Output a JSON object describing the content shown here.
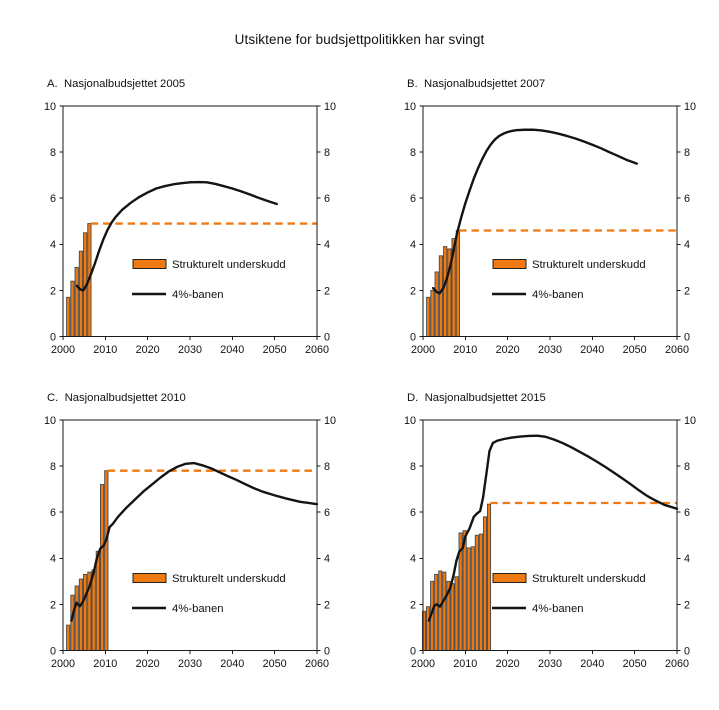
{
  "title": "Utsiktene for budsjettpolitikken har svingt",
  "colors": {
    "accent_orange": "#EF7A12",
    "series_line_black": "#141414",
    "axis_black": "#1a1a1a",
    "bar_border_gray": "#4a4a4a",
    "text": "#111111",
    "background": "#ffffff"
  },
  "chart_data": {
    "type": "bar",
    "note_chart_kind": "four-panel bar chart with line overlay and dashed reference level",
    "legend": {
      "bar_label": "Strukturelt underskudd",
      "line_label": "4%-banen",
      "position": "inside-center"
    },
    "axes": {
      "xlim": [
        2000,
        2060
      ],
      "ylim": [
        0,
        10
      ],
      "xticks": [
        2000,
        2010,
        2020,
        2030,
        2040,
        2050,
        2060
      ],
      "yticks": [
        0,
        2,
        4,
        6,
        8,
        10
      ],
      "grid": "off",
      "y_axis_both_sides": true
    },
    "panels": [
      {
        "label": "A.  Nasjonalbudsjettet 2005",
        "bars_start_year": 2001,
        "bar_pitch": 1,
        "bars": [
          1.7,
          2.4,
          3.0,
          3.7,
          4.5,
          4.9
        ],
        "dash_level": 4.9,
        "line_name": "4%-banen",
        "line": [
          [
            2003.3,
            2.2
          ],
          [
            2004,
            2.05
          ],
          [
            2004.8,
            2.0
          ],
          [
            2005.6,
            2.25
          ],
          [
            2006.5,
            2.65
          ],
          [
            2007.5,
            3.15
          ],
          [
            2008.5,
            3.7
          ],
          [
            2009.5,
            4.2
          ],
          [
            2010.5,
            4.62
          ],
          [
            2011.5,
            4.95
          ],
          [
            2012.5,
            5.2
          ],
          [
            2014,
            5.5
          ],
          [
            2016,
            5.8
          ],
          [
            2018,
            6.05
          ],
          [
            2020,
            6.25
          ],
          [
            2022,
            6.42
          ],
          [
            2024,
            6.52
          ],
          [
            2026,
            6.6
          ],
          [
            2028,
            6.65
          ],
          [
            2030,
            6.69
          ],
          [
            2032,
            6.7
          ],
          [
            2034,
            6.69
          ],
          [
            2036,
            6.62
          ],
          [
            2038,
            6.52
          ],
          [
            2040,
            6.42
          ],
          [
            2042,
            6.3
          ],
          [
            2044,
            6.17
          ],
          [
            2046,
            6.03
          ],
          [
            2048,
            5.9
          ],
          [
            2050.5,
            5.75
          ]
        ]
      },
      {
        "label": "B.  Nasjonalbudsjettet 2007",
        "bars_start_year": 2001,
        "bar_pitch": 1,
        "bars": [
          1.7,
          2.0,
          2.8,
          3.5,
          3.9,
          3.8,
          4.25,
          4.6
        ],
        "dash_level": 4.6,
        "line_name": "4%-banen",
        "line": [
          [
            2002.4,
            2.1
          ],
          [
            2003.1,
            1.95
          ],
          [
            2003.9,
            1.87
          ],
          [
            2004.8,
            2.1
          ],
          [
            2005.6,
            2.5
          ],
          [
            2006.5,
            3.1
          ],
          [
            2007.3,
            3.8
          ],
          [
            2008,
            4.45
          ],
          [
            2009,
            5.15
          ],
          [
            2010,
            5.78
          ],
          [
            2011,
            6.33
          ],
          [
            2012,
            6.85
          ],
          [
            2013,
            7.3
          ],
          [
            2014,
            7.7
          ],
          [
            2015,
            8.05
          ],
          [
            2016,
            8.33
          ],
          [
            2017,
            8.55
          ],
          [
            2018,
            8.7
          ],
          [
            2019,
            8.8
          ],
          [
            2020,
            8.87
          ],
          [
            2021,
            8.92
          ],
          [
            2022,
            8.95
          ],
          [
            2024,
            8.97
          ],
          [
            2026,
            8.97
          ],
          [
            2028,
            8.94
          ],
          [
            2030,
            8.88
          ],
          [
            2032,
            8.8
          ],
          [
            2034,
            8.7
          ],
          [
            2036,
            8.59
          ],
          [
            2038,
            8.46
          ],
          [
            2040,
            8.32
          ],
          [
            2042,
            8.17
          ],
          [
            2044,
            8.0
          ],
          [
            2046,
            7.84
          ],
          [
            2048,
            7.67
          ],
          [
            2050.5,
            7.5
          ]
        ]
      },
      {
        "label": "C.  Nasjonalbudsjettet 2010",
        "bars_start_year": 2001,
        "bar_pitch": 1,
        "bars": [
          1.1,
          2.4,
          2.8,
          3.1,
          3.3,
          3.4,
          3.5,
          4.3,
          7.2,
          7.8
        ],
        "dash_level": 7.8,
        "line_name": "4%-banen",
        "line": [
          [
            2002,
            1.3
          ],
          [
            2002.6,
            1.75
          ],
          [
            2003.2,
            2.07
          ],
          [
            2004,
            1.92
          ],
          [
            2004.8,
            2.15
          ],
          [
            2005.5,
            2.45
          ],
          [
            2006.3,
            2.8
          ],
          [
            2007.2,
            3.35
          ],
          [
            2008,
            4.0
          ],
          [
            2008.8,
            4.42
          ],
          [
            2009.6,
            4.55
          ],
          [
            2010.3,
            4.85
          ],
          [
            2011,
            5.35
          ],
          [
            2011.8,
            5.5
          ],
          [
            2013,
            5.8
          ],
          [
            2015,
            6.2
          ],
          [
            2017,
            6.55
          ],
          [
            2019,
            6.9
          ],
          [
            2021,
            7.2
          ],
          [
            2023,
            7.5
          ],
          [
            2025,
            7.77
          ],
          [
            2027,
            7.97
          ],
          [
            2029,
            8.1
          ],
          [
            2031,
            8.13
          ],
          [
            2033,
            8.03
          ],
          [
            2035,
            7.9
          ],
          [
            2037,
            7.73
          ],
          [
            2039,
            7.56
          ],
          [
            2041,
            7.4
          ],
          [
            2043,
            7.22
          ],
          [
            2045,
            7.05
          ],
          [
            2047,
            6.9
          ],
          [
            2050,
            6.73
          ],
          [
            2053,
            6.58
          ],
          [
            2056,
            6.45
          ],
          [
            2058,
            6.4
          ],
          [
            2060,
            6.35
          ]
        ]
      },
      {
        "label": "D.  Nasjonalbudsjettet 2015",
        "bars_start_year": 2000,
        "bar_pitch": 0.96,
        "bars": [
          1.7,
          1.9,
          3.0,
          3.3,
          3.45,
          3.4,
          3.0,
          2.9,
          3.2,
          5.1,
          5.2,
          4.45,
          4.5,
          5.0,
          5.05,
          5.8,
          6.35
        ],
        "dash_level": 6.4,
        "line_name": "4%-banen",
        "line": [
          [
            2001.4,
            1.3
          ],
          [
            2002,
            1.6
          ],
          [
            2002.7,
            1.95
          ],
          [
            2003.3,
            2.0
          ],
          [
            2004,
            1.9
          ],
          [
            2004.8,
            2.15
          ],
          [
            2005.6,
            2.4
          ],
          [
            2006.4,
            2.7
          ],
          [
            2007.2,
            3.25
          ],
          [
            2007.9,
            3.9
          ],
          [
            2008.6,
            4.3
          ],
          [
            2009.4,
            4.45
          ],
          [
            2010,
            4.95
          ],
          [
            2011,
            5.3
          ],
          [
            2012,
            5.8
          ],
          [
            2012.8,
            5.95
          ],
          [
            2013.5,
            6.05
          ],
          [
            2014.2,
            6.65
          ],
          [
            2015,
            7.7
          ],
          [
            2015.7,
            8.65
          ],
          [
            2016.5,
            9.0
          ],
          [
            2017.5,
            9.1
          ],
          [
            2019,
            9.17
          ],
          [
            2021,
            9.24
          ],
          [
            2023,
            9.28
          ],
          [
            2025,
            9.31
          ],
          [
            2027,
            9.32
          ],
          [
            2029,
            9.27
          ],
          [
            2031,
            9.15
          ],
          [
            2033,
            9.0
          ],
          [
            2035,
            8.82
          ],
          [
            2037,
            8.62
          ],
          [
            2039,
            8.42
          ],
          [
            2041,
            8.2
          ],
          [
            2043,
            7.97
          ],
          [
            2045,
            7.73
          ],
          [
            2047,
            7.48
          ],
          [
            2049,
            7.22
          ],
          [
            2051,
            6.95
          ],
          [
            2053,
            6.7
          ],
          [
            2055,
            6.5
          ],
          [
            2057,
            6.32
          ],
          [
            2060,
            6.15
          ]
        ]
      }
    ]
  }
}
